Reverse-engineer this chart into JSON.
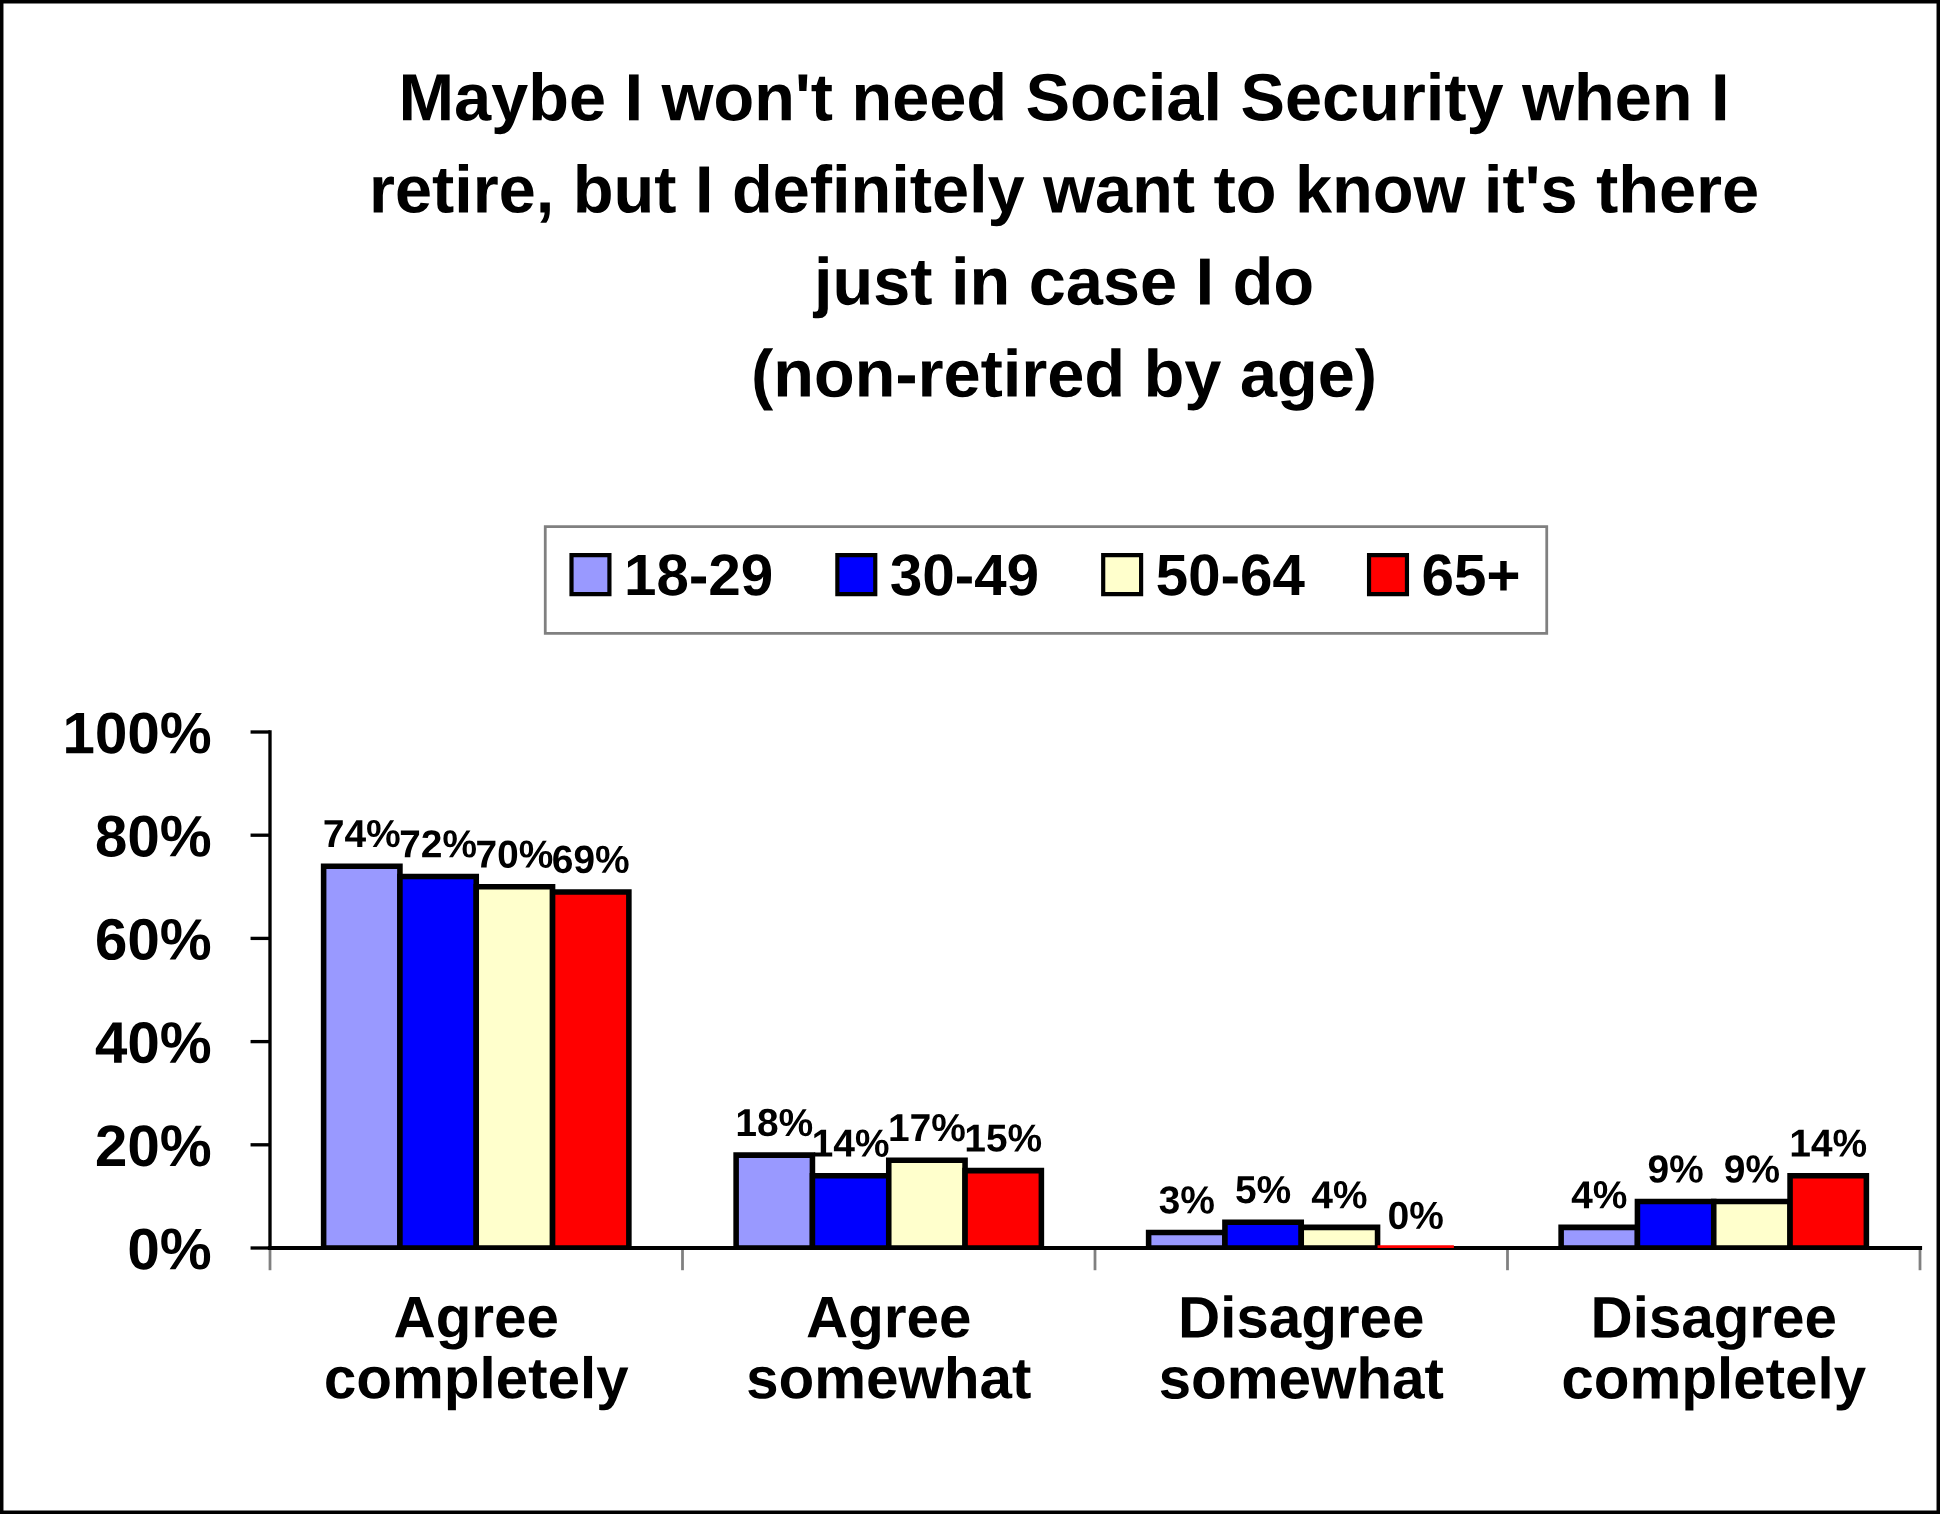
{
  "chart_data": {
    "type": "bar",
    "title": "Maybe I won't need Social Security when I\nretire, but I definitely want to know it's there\njust in case I do\n(non-retired by age)",
    "categories": [
      "Agree\ncompletely",
      "Agree\nsomewhat",
      "Disagree\nsomewhat",
      "Disagree\ncompletely"
    ],
    "series": [
      {
        "name": "18-29",
        "color": "#9999ff",
        "values": [
          74,
          18,
          3,
          4
        ],
        "value_labels": [
          "74%",
          "18%",
          "3%",
          "4%"
        ]
      },
      {
        "name": "30-49",
        "color": "#0000ff",
        "values": [
          72,
          14,
          5,
          9
        ],
        "value_labels": [
          "72%",
          "14%",
          "5%",
          "9%"
        ]
      },
      {
        "name": "50-64",
        "color": "#ffffcc",
        "values": [
          70,
          17,
          4,
          9
        ],
        "value_labels": [
          "70%",
          "17%",
          "4%",
          "9%"
        ]
      },
      {
        "name": "65+",
        "color": "#ff0000",
        "values": [
          69,
          15,
          0,
          14
        ],
        "value_labels": [
          "69%",
          "15%",
          "0%",
          "14%"
        ]
      }
    ],
    "ylim": [
      0,
      100
    ],
    "yticks": [
      {
        "value": 0,
        "label": "0%"
      },
      {
        "value": 20,
        "label": "20%"
      },
      {
        "value": 40,
        "label": "40%"
      },
      {
        "value": 60,
        "label": "60%"
      },
      {
        "value": 80,
        "label": "80%"
      },
      {
        "value": 100,
        "label": "100%"
      }
    ],
    "grid": false,
    "legend": "top"
  }
}
